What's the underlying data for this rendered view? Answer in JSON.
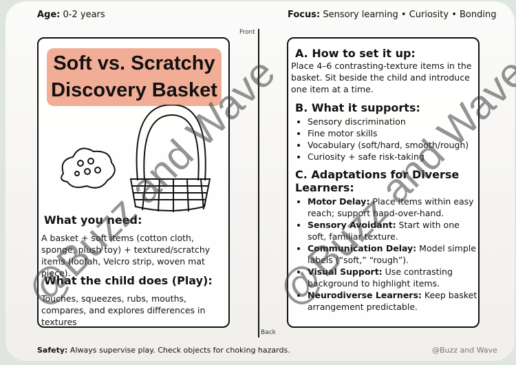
{
  "header": {
    "age_label": "Age:",
    "age_value": "0-2 years",
    "focus_label": "Focus:",
    "focus_value": "Sensory learning • Curiosity • Bonding"
  },
  "labels": {
    "front": "Front",
    "back": "Back"
  },
  "left": {
    "title": "Soft vs. Scratchy Discovery Basket",
    "need_heading": "What you need:",
    "need_text": "A basket + soft items (cotton cloth, sponge, plush toy) + textured/scratchy items (loofah, Velcro strip, woven mat piece).",
    "play_heading": "What the child does (Play):",
    "play_text": "Touches, squeezes, rubs, mouths, compares, and explores differences in textures"
  },
  "right": {
    "a_heading": "A. How to set it up:",
    "a_text": "Place 4–6 contrasting-texture items in the basket. Sit beside the child and introduce one item at a time.",
    "b_heading": "B. What it supports:",
    "b_items": [
      "Sensory discrimination",
      "Fine motor skills",
      "Vocabulary (soft/hard, smooth/rough)",
      "Curiosity + safe risk-taking"
    ],
    "c_heading": "C. Adaptations for Diverse Learners:",
    "c_items": [
      {
        "label": "Motor Delay:",
        "text": " Place items within easy reach; support hand-over-hand."
      },
      {
        "label": "Sensory Avoidant:",
        "text": " Start with one soft, familiar texture."
      },
      {
        "label": "Communication Delay:",
        "text": " Model simple labels (“soft,” “rough”)."
      },
      {
        "label": "Visual Support:",
        "text": " Use contrasting background to highlight items."
      },
      {
        "label": "Neurodiverse Learners:",
        "text": " Keep basket arrangement predictable."
      }
    ]
  },
  "footer": {
    "safety_label": "Safety:",
    "safety_text": "Always supervise play. Check objects for choking hazards.",
    "credit": "@Buzz and Wave"
  },
  "watermark": "@Buzz and Wave",
  "colors": {
    "title_bg": "#f2ad96"
  }
}
